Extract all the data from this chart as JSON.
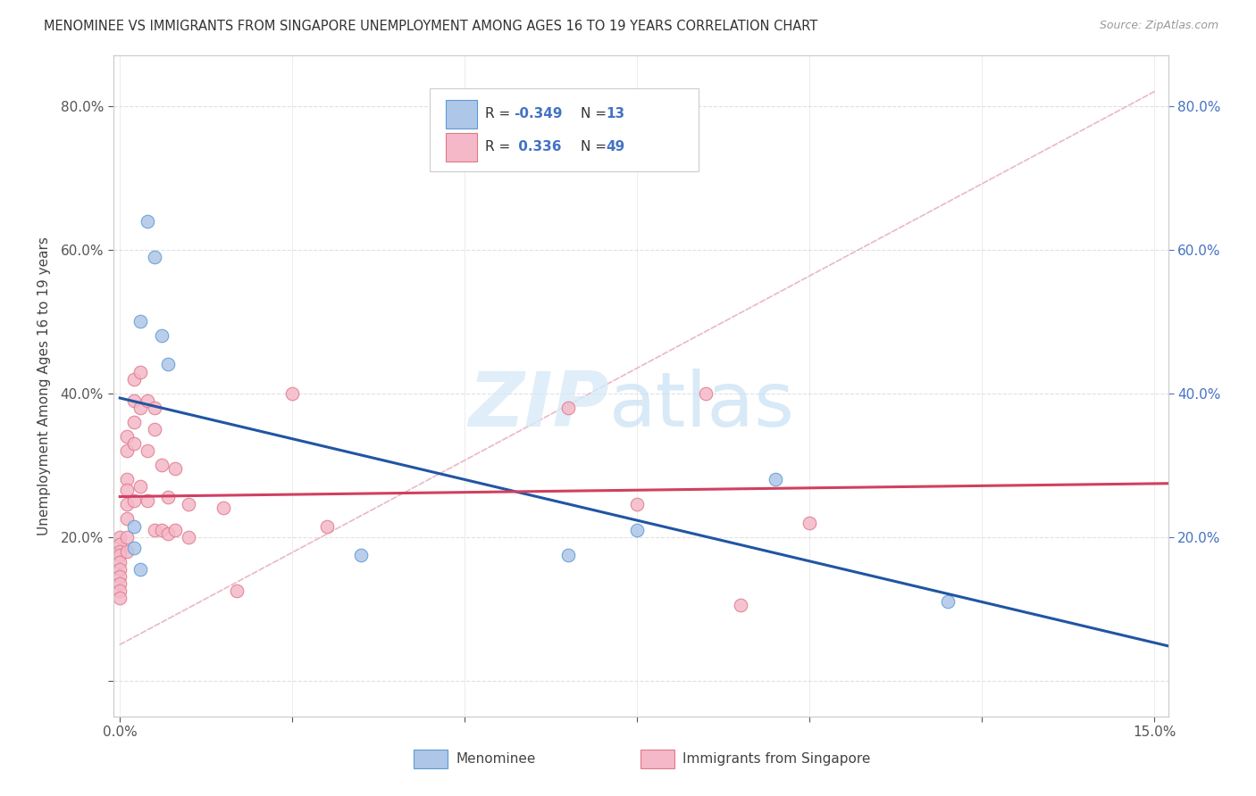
{
  "title": "MENOMINEE VS IMMIGRANTS FROM SINGAPORE UNEMPLOYMENT AMONG AGES 16 TO 19 YEARS CORRELATION CHART",
  "source": "Source: ZipAtlas.com",
  "ylabel": "Unemployment Among Ages 16 to 19 years",
  "xlim": [
    -0.001,
    0.152
  ],
  "ylim": [
    -0.05,
    0.87
  ],
  "xtick_vals": [
    0.0,
    0.025,
    0.05,
    0.075,
    0.1,
    0.125,
    0.15
  ],
  "xtick_labels": [
    "0.0%",
    "",
    "",
    "",
    "",
    "",
    "15.0%"
  ],
  "ytick_vals": [
    0.0,
    0.2,
    0.4,
    0.6,
    0.8
  ],
  "ytick_labels_left": [
    "",
    "20.0%",
    "40.0%",
    "60.0%",
    "80.0%"
  ],
  "ytick_labels_right": [
    "20.0%",
    "40.0%",
    "60.0%",
    "80.0%"
  ],
  "menominee_color": "#aec6e8",
  "menominee_edge_color": "#5b9bd5",
  "singapore_color": "#f4b8c8",
  "singapore_edge_color": "#e0788a",
  "menominee_line_color": "#2155a3",
  "singapore_line_color": "#d04060",
  "diag_line_color": "#e8b0c0",
  "R_menominee": -0.349,
  "N_menominee": 13,
  "R_singapore": 0.336,
  "N_singapore": 49,
  "menominee_x": [
    0.002,
    0.002,
    0.003,
    0.003,
    0.004,
    0.005,
    0.006,
    0.007,
    0.035,
    0.065,
    0.075,
    0.095,
    0.12
  ],
  "menominee_y": [
    0.215,
    0.185,
    0.155,
    0.5,
    0.64,
    0.59,
    0.48,
    0.44,
    0.175,
    0.175,
    0.21,
    0.28,
    0.11
  ],
  "singapore_x": [
    0.0,
    0.0,
    0.0,
    0.0,
    0.0,
    0.0,
    0.0,
    0.0,
    0.0,
    0.0,
    0.001,
    0.001,
    0.001,
    0.001,
    0.001,
    0.001,
    0.001,
    0.001,
    0.002,
    0.002,
    0.002,
    0.002,
    0.002,
    0.003,
    0.003,
    0.003,
    0.004,
    0.004,
    0.004,
    0.005,
    0.005,
    0.005,
    0.006,
    0.006,
    0.007,
    0.007,
    0.008,
    0.008,
    0.01,
    0.01,
    0.015,
    0.017,
    0.025,
    0.03,
    0.065,
    0.075,
    0.085,
    0.09,
    0.1
  ],
  "singapore_y": [
    0.2,
    0.19,
    0.18,
    0.175,
    0.165,
    0.155,
    0.145,
    0.135,
    0.125,
    0.115,
    0.34,
    0.32,
    0.28,
    0.265,
    0.245,
    0.225,
    0.2,
    0.18,
    0.42,
    0.39,
    0.36,
    0.33,
    0.25,
    0.43,
    0.38,
    0.27,
    0.39,
    0.32,
    0.25,
    0.38,
    0.35,
    0.21,
    0.3,
    0.21,
    0.255,
    0.205,
    0.295,
    0.21,
    0.245,
    0.2,
    0.24,
    0.125,
    0.4,
    0.215,
    0.38,
    0.245,
    0.4,
    0.105,
    0.22
  ],
  "background_color": "#ffffff",
  "grid_color": "#dddddd",
  "watermark_zip_color": "#d4e4f5",
  "watermark_atlas_color": "#c8ddf0"
}
